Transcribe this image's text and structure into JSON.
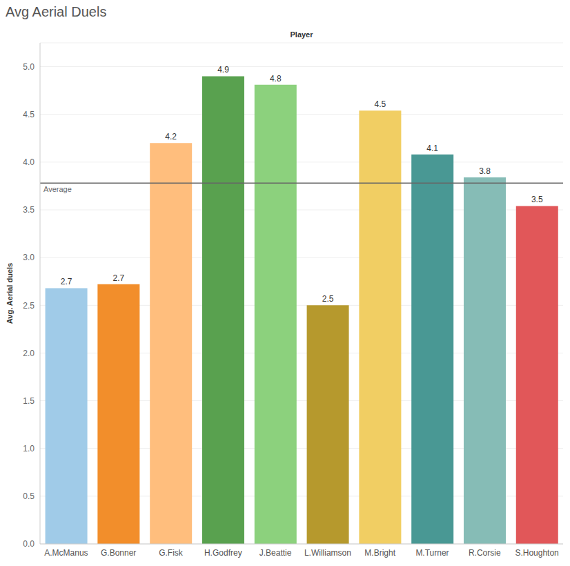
{
  "chart_data": {
    "type": "bar",
    "title": "Avg Aerial Duels",
    "x_label": "Player",
    "y_label": "Avg. Aerial duels",
    "categories": [
      "A.McManus",
      "G.Bonner",
      "G.Fisk",
      "H.Godfrey",
      "J.Beattie",
      "L.Williamson",
      "M.Bright",
      "M.Turner",
      "R.Corsie",
      "S.Houghton"
    ],
    "values": [
      2.68,
      2.72,
      4.2,
      4.9,
      4.81,
      2.5,
      4.54,
      4.08,
      3.84,
      3.54
    ],
    "value_labels": [
      "2.7",
      "2.7",
      "4.2",
      "4.9",
      "4.8",
      "2.5",
      "4.5",
      "4.1",
      "3.8",
      "3.5"
    ],
    "colors": [
      "#A0CBE8",
      "#F28E2B",
      "#FFBE7D",
      "#59A14F",
      "#8CD17D",
      "#B6992D",
      "#F1CE63",
      "#499894",
      "#86BCB6",
      "#E15759"
    ],
    "ylim": [
      0,
      5.25
    ],
    "yticks": [
      {
        "value": 0,
        "label": "0.0"
      },
      0.5,
      {
        "value": 1,
        "label": "1.0"
      },
      1.5,
      {
        "value": 2,
        "label": "2.0"
      },
      2.5,
      {
        "value": 3,
        "label": "3.0"
      },
      3.5,
      {
        "value": 4,
        "label": "4.0"
      },
      4.5,
      {
        "value": 5,
        "label": "5.0"
      }
    ],
    "reference_line": {
      "value": 3.78,
      "label": "Average"
    },
    "grid": true,
    "data_labels": true
  }
}
